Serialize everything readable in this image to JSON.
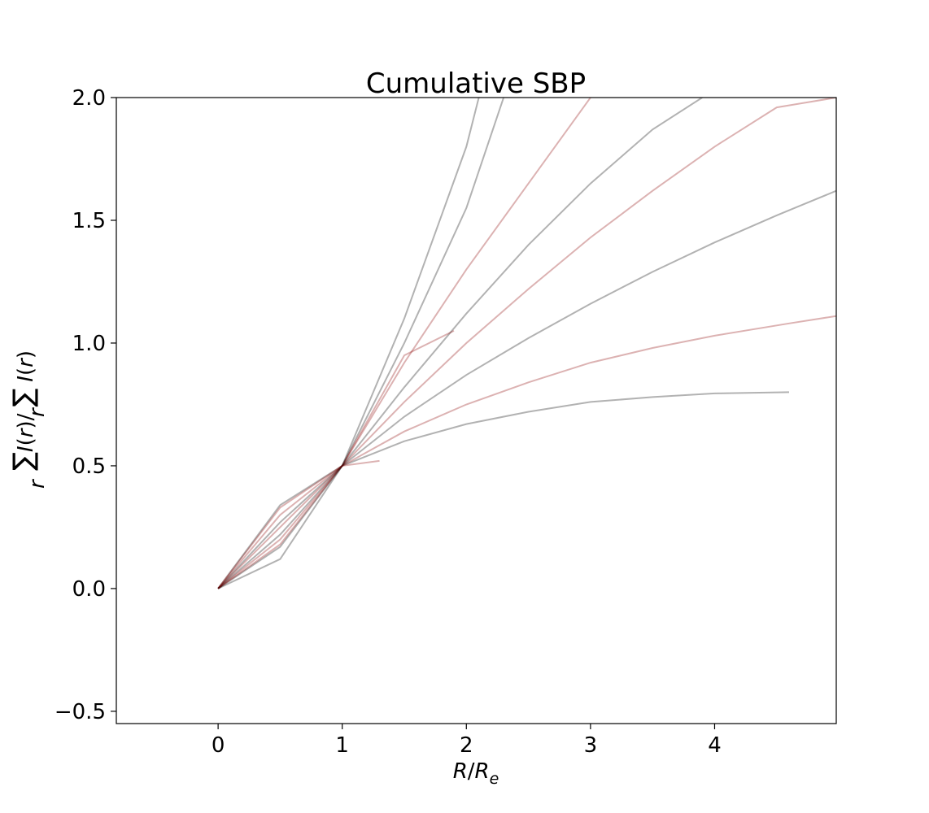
{
  "chart_data": {
    "type": "line",
    "title": "Cumulative SBP",
    "xlabel": "R/R_e",
    "ylabel": "∑_r I(r) / ∑ I(r)",
    "xlim": [
      -0.82,
      4.98
    ],
    "ylim": [
      -0.55,
      2.0
    ],
    "xticks": [
      0,
      1,
      2,
      3,
      4
    ],
    "xtick_labels": [
      "0",
      "1",
      "2",
      "3",
      "4"
    ],
    "yticks": [
      -0.5,
      0.0,
      0.5,
      1.0,
      1.5,
      2.0
    ],
    "ytick_labels": [
      "−0.5",
      "0.0",
      "0.5",
      "1.0",
      "1.5",
      "2.0"
    ],
    "grid": false,
    "legend": "none",
    "line_colors": [
      "#000000",
      "#8b0000"
    ],
    "series": [
      {
        "x": [
          0,
          0.5,
          1,
          1.5,
          2.0,
          2.5,
          3.0,
          3.5,
          4.0,
          4.6
        ],
        "y": [
          0,
          0.34,
          0.5,
          0.6,
          0.67,
          0.72,
          0.76,
          0.78,
          0.795,
          0.8
        ]
      },
      {
        "x": [
          0,
          0.5,
          1,
          1.5,
          2.0,
          2.5,
          3.0,
          3.5,
          4.0,
          4.6,
          4.98
        ],
        "y": [
          0,
          0.3,
          0.5,
          0.64,
          0.75,
          0.84,
          0.92,
          0.98,
          1.03,
          1.08,
          1.11
        ]
      },
      {
        "x": [
          0,
          0.5,
          1,
          1.5,
          2.0,
          2.5,
          3.0,
          3.5,
          4.0,
          4.5,
          4.98
        ],
        "y": [
          0,
          0.27,
          0.5,
          0.7,
          0.87,
          1.02,
          1.16,
          1.29,
          1.41,
          1.52,
          1.62
        ]
      },
      {
        "x": [
          0,
          0.5,
          1,
          1.5,
          2.0,
          2.5,
          3.0,
          3.5,
          4.0,
          4.5,
          4.98
        ],
        "y": [
          0,
          0.25,
          0.5,
          0.76,
          1.0,
          1.22,
          1.43,
          1.62,
          1.8,
          1.96,
          2.0
        ]
      },
      {
        "x": [
          0,
          0.5,
          1,
          1.5,
          2.0,
          2.5,
          3.0,
          3.5,
          3.9
        ],
        "y": [
          0,
          0.22,
          0.5,
          0.82,
          1.12,
          1.4,
          1.65,
          1.87,
          2.0
        ]
      },
      {
        "x": [
          0,
          0.5,
          1,
          1.5,
          2.0,
          2.5,
          3.0
        ],
        "y": [
          0,
          0.2,
          0.5,
          0.92,
          1.3,
          1.65,
          2.0
        ]
      },
      {
        "x": [
          0,
          0.5,
          1,
          1.5,
          2.0,
          2.3
        ],
        "y": [
          0,
          0.17,
          0.5,
          1.0,
          1.55,
          2.0
        ]
      },
      {
        "x": [
          0,
          0.5,
          1,
          1.5,
          1.9
        ],
        "y": [
          0,
          0.18,
          0.5,
          0.95,
          1.05
        ]
      },
      {
        "x": [
          0,
          0.5,
          1,
          1.5,
          2.0,
          2.1
        ],
        "y": [
          0,
          0.12,
          0.5,
          1.1,
          1.8,
          2.0
        ]
      },
      {
        "x": [
          0,
          0.5,
          1,
          1.3
        ],
        "y": [
          0,
          0.33,
          0.5,
          0.52
        ]
      }
    ]
  }
}
